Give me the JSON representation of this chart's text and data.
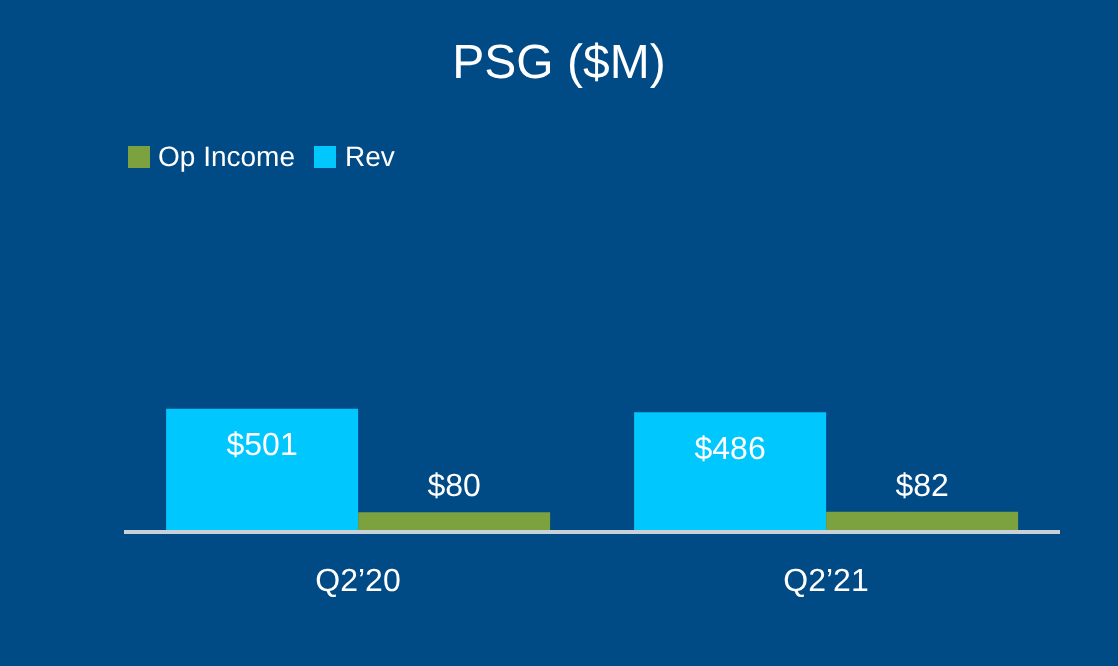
{
  "chart_data": {
    "type": "bar",
    "title": "PSG ($M)",
    "categories": [
      "Q2’20",
      "Q2’21"
    ],
    "series": [
      {
        "name": "Rev",
        "color": "#00c7fd",
        "values": [
          501,
          486
        ],
        "value_labels": [
          "$501",
          "$486"
        ]
      },
      {
        "name": "Op Income",
        "color": "#7ba23f",
        "values": [
          80,
          82
        ],
        "value_labels": [
          "$80",
          "$82"
        ]
      }
    ],
    "legend": "top left"
  }
}
